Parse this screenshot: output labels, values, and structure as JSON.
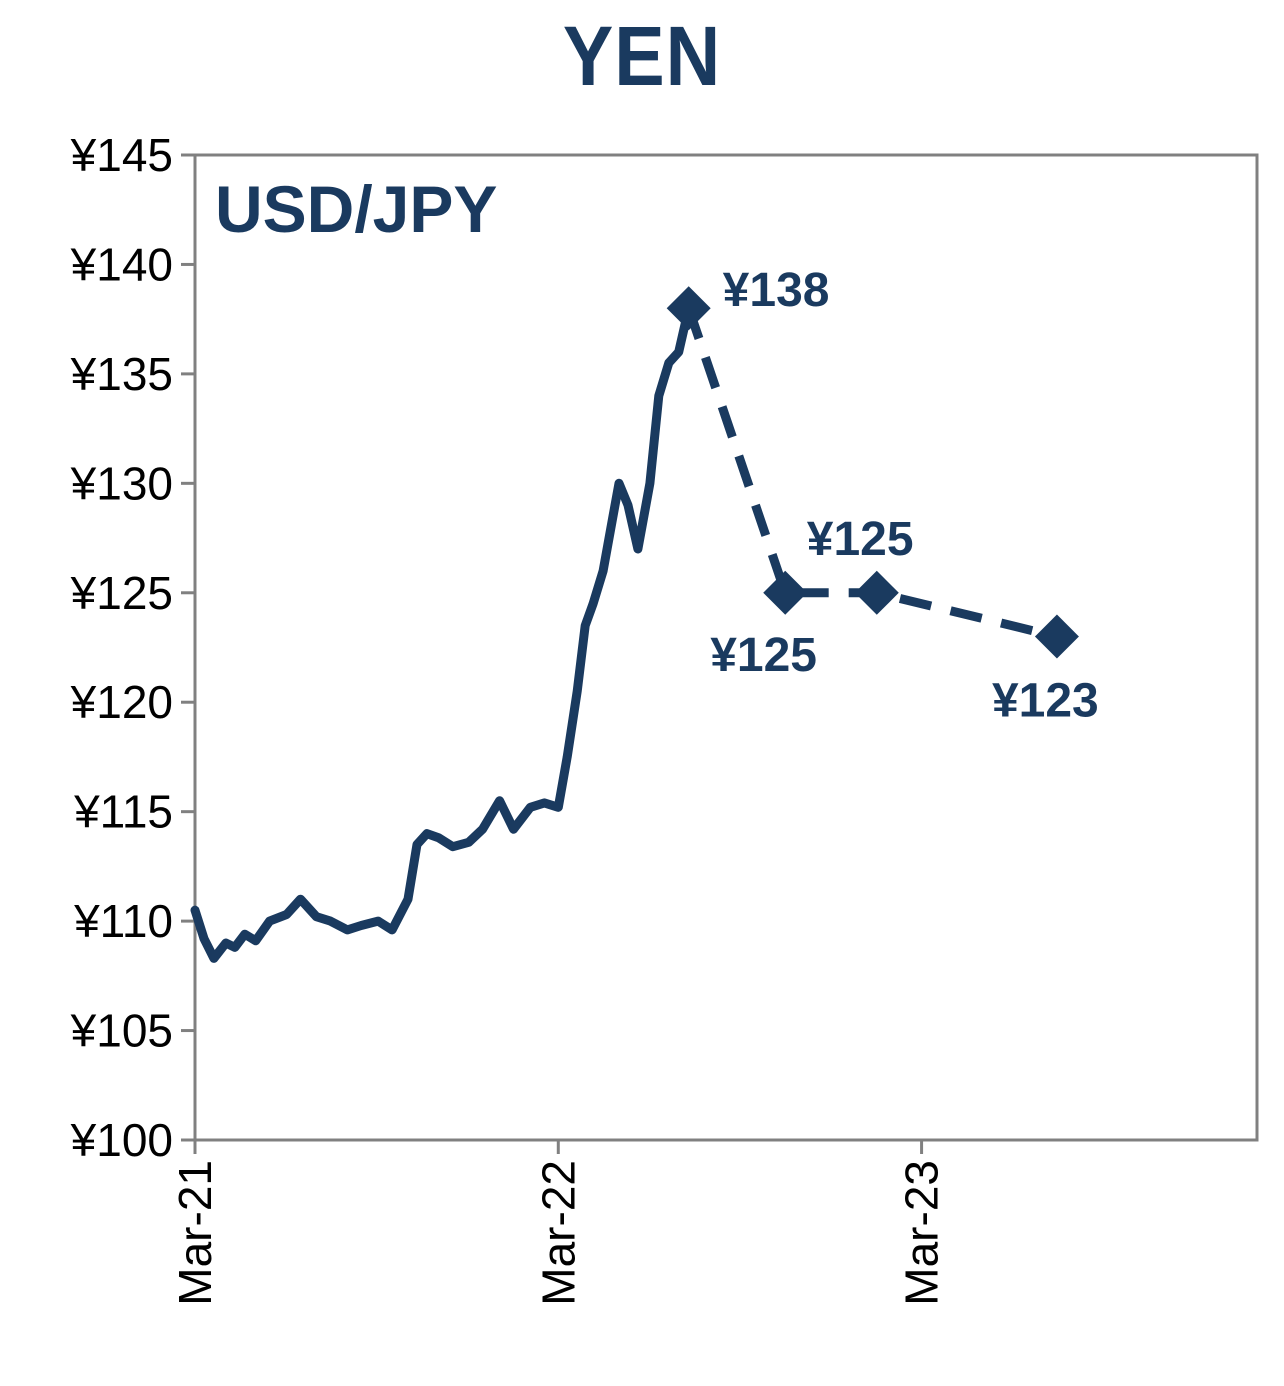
{
  "chart_data": {
    "type": "line",
    "title": "YEN",
    "subtitle": "USD/JPY",
    "xlabel": "",
    "ylabel": "",
    "ylim": [
      100,
      145
    ],
    "xlim": [
      "2021-03",
      "2024-02"
    ],
    "grid": false,
    "color": "#1a3a5f",
    "y_ticks": [
      "¥100",
      "¥105",
      "¥110",
      "¥115",
      "¥120",
      "¥125",
      "¥130",
      "¥135",
      "¥140",
      "¥145"
    ],
    "x_ticks": [
      "Mar-21",
      "Mar-22",
      "Mar-23"
    ],
    "series": [
      {
        "style": "solid",
        "x": [
          "2021-03-01",
          "2021-03-10",
          "2021-03-20",
          "2021-04-01",
          "2021-04-10",
          "2021-04-20",
          "2021-05-01",
          "2021-05-15",
          "2021-06-01",
          "2021-06-15",
          "2021-07-01",
          "2021-07-15",
          "2021-08-01",
          "2021-08-15",
          "2021-09-01",
          "2021-09-15",
          "2021-10-01",
          "2021-10-10",
          "2021-10-20",
          "2021-11-01",
          "2021-11-15",
          "2021-12-01",
          "2021-12-15",
          "2022-01-01",
          "2022-01-15",
          "2022-02-01",
          "2022-02-15",
          "2022-03-01",
          "2022-03-10",
          "2022-03-20",
          "2022-03-28",
          "2022-04-05",
          "2022-04-15",
          "2022-04-25",
          "2022-05-01",
          "2022-05-10",
          "2022-05-20",
          "2022-06-01",
          "2022-06-10",
          "2022-06-20",
          "2022-06-30",
          "2022-07-10"
        ],
        "values": [
          110.5,
          109.2,
          108.3,
          109.0,
          108.8,
          109.4,
          109.1,
          110.0,
          110.3,
          111.0,
          110.2,
          110.0,
          109.6,
          109.8,
          110.0,
          109.6,
          111.0,
          113.5,
          114.0,
          113.8,
          113.4,
          113.6,
          114.2,
          115.5,
          114.2,
          115.2,
          115.4,
          115.2,
          117.5,
          120.5,
          123.5,
          124.5,
          126.0,
          128.5,
          130.0,
          129.0,
          127.0,
          130.0,
          134.0,
          135.5,
          136.0,
          138.0
        ]
      },
      {
        "style": "dashed-forecast",
        "x": [
          "2022-07-10",
          "2022-10-15",
          "2023-01-15",
          "2023-07-15"
        ],
        "values": [
          138,
          125,
          125,
          123
        ],
        "labels": [
          "¥138",
          "¥125",
          "¥125",
          "¥123"
        ]
      }
    ]
  }
}
